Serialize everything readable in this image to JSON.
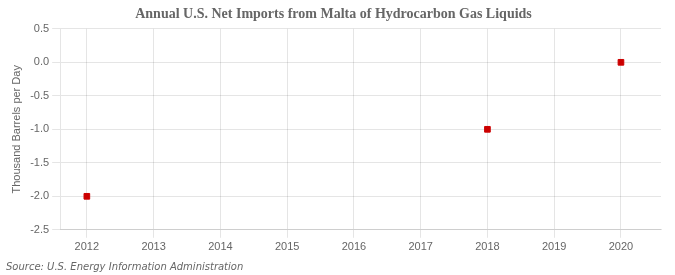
{
  "chart_data": {
    "type": "scatter",
    "title": "Annual U.S. Net Imports from Malta of Hydrocarbon Gas Liquids",
    "y_label": "Thousand Barrels per Day",
    "annotations": [
      "Source: U.S. Energy Information Administration"
    ],
    "x": [
      2012,
      2018,
      2020
    ],
    "values": [
      -2.0,
      -1.0,
      0.0
    ],
    "color": "#cc0000",
    "marker": "square",
    "xlim": [
      2011.6,
      2020.6
    ],
    "xticks": [
      2012,
      2013,
      2014,
      2015,
      2016,
      2017,
      2018,
      2019,
      2020
    ],
    "ylim": [
      -2.5,
      0.5
    ],
    "yticks": [
      "-2.5",
      {
        "value": -2.0,
        "label": "-2.0"
      },
      -1.5,
      {
        "value": -1.0,
        "label": "-1.0"
      },
      -0.5,
      {
        "value": 0.0,
        "label": "0.0"
      },
      0.5
    ],
    "grid": true
  }
}
